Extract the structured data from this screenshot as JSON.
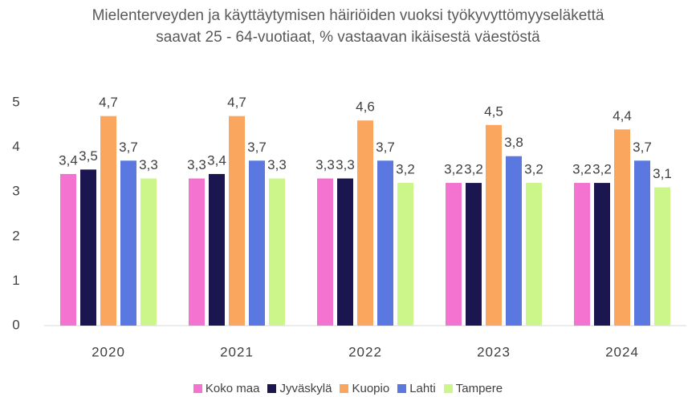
{
  "chart_data": {
    "type": "bar",
    "title": "Mielenterveyden ja käyttäytymisen häiriöiden vuoksi työkyvyttömyyseläkettä saavat 25 - 64-vuotiaat, % vastaavan ikäisestä väestöstä",
    "categories": [
      "2020",
      "2021",
      "2022",
      "2023",
      "2024"
    ],
    "series": [
      {
        "name": "Koko maa",
        "color": "#f472d0",
        "values": [
          3.4,
          3.3,
          3.3,
          3.2,
          3.2
        ],
        "value_labels": [
          "3,4",
          "3,3",
          "3,3",
          "3,2",
          "3,2"
        ]
      },
      {
        "name": "Jyväskylä",
        "color": "#1c1650",
        "values": [
          3.5,
          3.4,
          3.3,
          3.2,
          3.2
        ],
        "value_labels": [
          "3,5",
          "3,4",
          "3,3",
          "3,2",
          "3,2"
        ]
      },
      {
        "name": "Kuopio",
        "color": "#fba65e",
        "values": [
          4.7,
          4.7,
          4.6,
          4.5,
          4.4
        ],
        "value_labels": [
          "4,7",
          "4,7",
          "4,6",
          "4,5",
          "4,4"
        ]
      },
      {
        "name": "Lahti",
        "color": "#5b78e0",
        "values": [
          3.7,
          3.7,
          3.7,
          3.8,
          3.7
        ],
        "value_labels": [
          "3,7",
          "3,7",
          "3,7",
          "3,8",
          "3,7"
        ]
      },
      {
        "name": "Tampere",
        "color": "#ccf58a",
        "values": [
          3.3,
          3.3,
          3.2,
          3.2,
          3.1
        ],
        "value_labels": [
          "3,3",
          "3,3",
          "3,2",
          "3,2",
          "3,1"
        ]
      }
    ],
    "ylim": [
      0,
      5
    ],
    "yticks": [
      0,
      1,
      2,
      3,
      4,
      5
    ],
    "grid": false,
    "legend": "bottom"
  }
}
